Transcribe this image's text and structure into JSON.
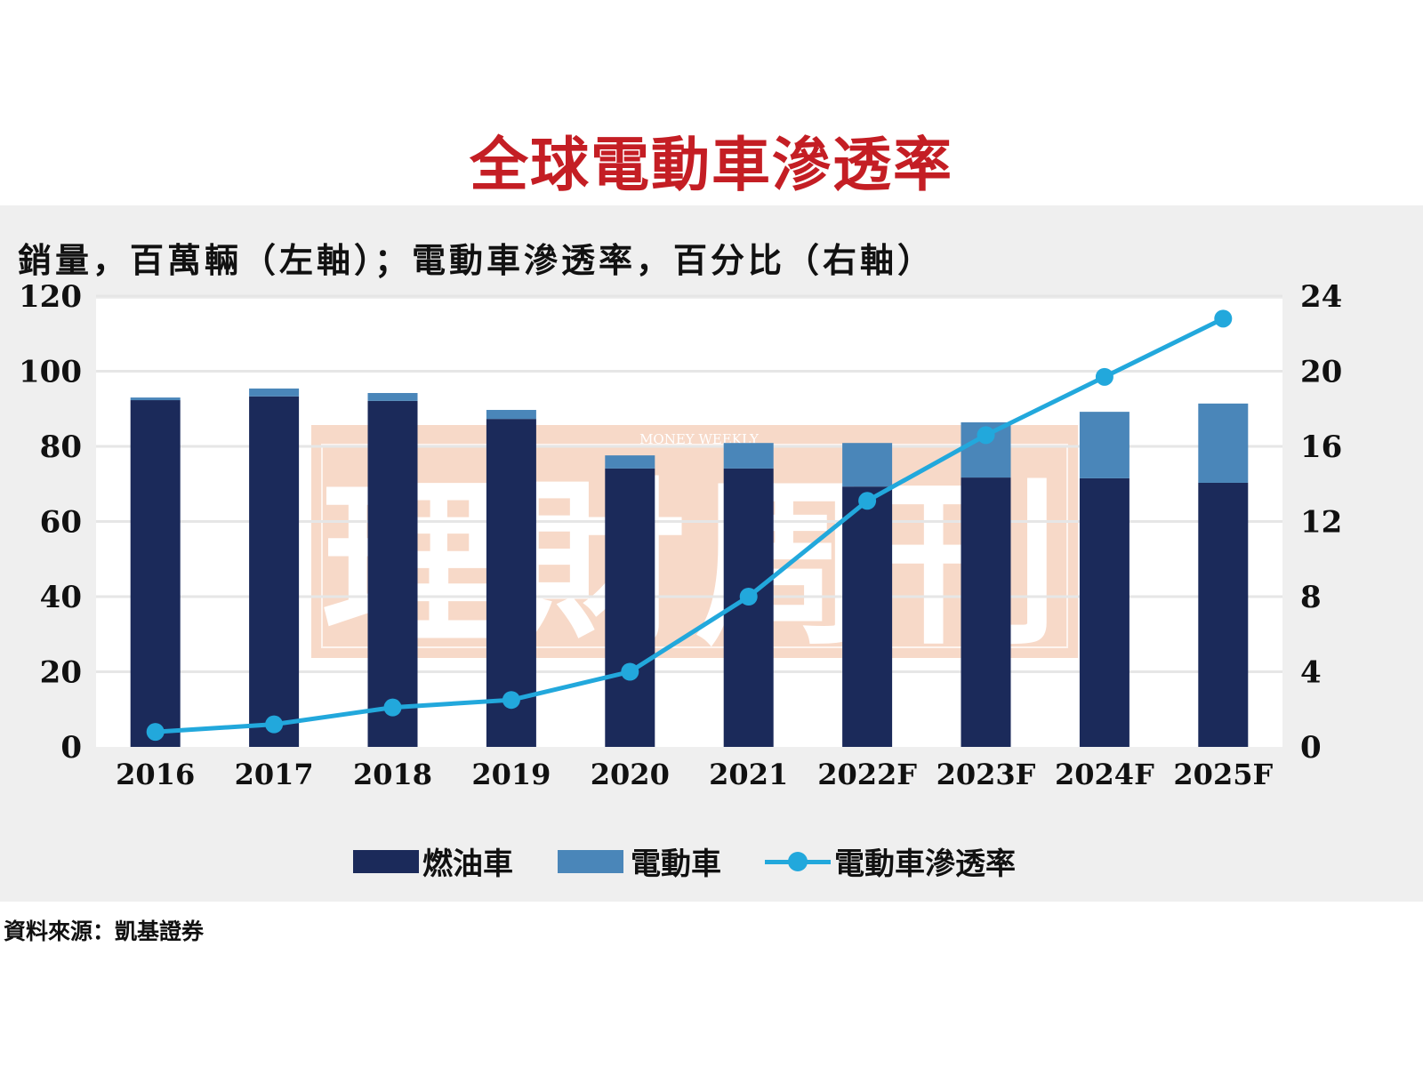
{
  "title": "全球電動車滲透率",
  "subtitle": "銷量，百萬輛（左軸）；電動車滲透率，百分比（右軸）",
  "source": "資料來源：凱基證券",
  "watermark": {
    "text": "理財周刊",
    "subtext": "MONEY WEEKLY"
  },
  "colors": {
    "title": "#c41e24",
    "fuel": "#1b2a5a",
    "ev": "#4a86b9",
    "line": "#22a8dc",
    "panel": "#efefef",
    "plot": "#ffffff",
    "grid": "#e6e6e6",
    "watermark": "#f7d9c8"
  },
  "legend": {
    "fuel": "燃油車",
    "ev": "電動車",
    "line": "電動車滲透率"
  },
  "chart_data": {
    "type": "bar",
    "stacked": true,
    "title": "全球電動車滲透率",
    "subtitle": "銷量，百萬輛（左軸）；電動車滲透率，百分比（右軸）",
    "categories": [
      "2016",
      "2017",
      "2018",
      "2019",
      "2020",
      "2021",
      "2022F",
      "2023F",
      "2024F",
      "2025F"
    ],
    "series": [
      {
        "name": "燃油車",
        "type": "bar",
        "axis": "left",
        "values": [
          92.3,
          93.3,
          92.1,
          87.3,
          74.1,
          74.1,
          69.3,
          71.7,
          71.5,
          70.3
        ]
      },
      {
        "name": "電動車",
        "type": "bar",
        "axis": "left",
        "values": [
          0.7,
          2.1,
          2.1,
          2.4,
          3.5,
          6.8,
          11.6,
          14.7,
          17.7,
          21.1
        ]
      },
      {
        "name": "電動車滲透率",
        "type": "line",
        "axis": "right",
        "values": [
          0.8,
          1.2,
          2.1,
          2.5,
          4.0,
          8.0,
          13.1,
          16.6,
          19.7,
          22.8
        ]
      }
    ],
    "y_left": {
      "range": [
        0,
        120
      ],
      "ticks": [
        "0",
        "20",
        "40",
        "60",
        "80",
        "100",
        "120"
      ]
    },
    "y_right": {
      "range": [
        0,
        24
      ],
      "ticks": [
        "0",
        "4",
        "8",
        "12",
        "16",
        "20",
        "24"
      ]
    },
    "grid": true,
    "legend_position": "bottom"
  }
}
